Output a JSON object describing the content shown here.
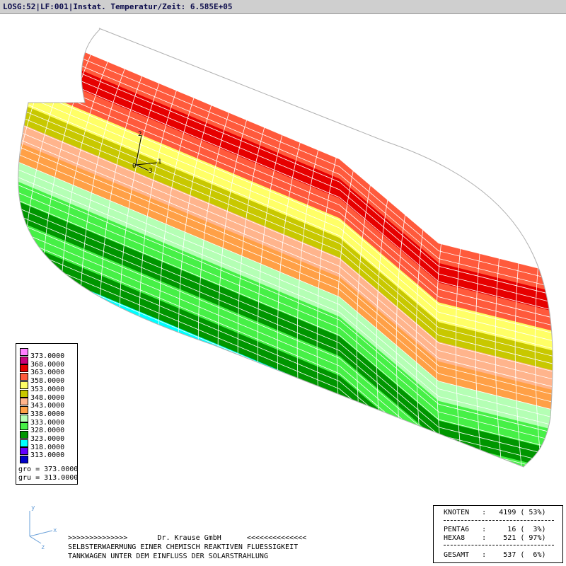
{
  "header": {
    "title": "LOSG:52|LF:001|Instat. Temperatur/Zeit: 6.585E+05"
  },
  "triad": {
    "axis1": "1",
    "axis2": "2",
    "axis3": "3",
    "origin": "0"
  },
  "view_axes": {
    "y": "y",
    "x": "x",
    "z": "z"
  },
  "legend": {
    "entries": [
      {
        "label": "373.0000",
        "color": "#ff80ff"
      },
      {
        "label": "368.0000",
        "color": "#c8007a"
      },
      {
        "label": "363.0000",
        "color": "#e60000"
      },
      {
        "label": "358.0000",
        "color": "#ff5a3c"
      },
      {
        "label": "353.0000",
        "color": "#ffff66"
      },
      {
        "label": "348.0000",
        "color": "#c8c800"
      },
      {
        "label": "343.0000",
        "color": "#ffb48c"
      },
      {
        "label": "338.0000",
        "color": "#ffa046"
      },
      {
        "label": "333.0000",
        "color": "#b4ffb4"
      },
      {
        "label": "328.0000",
        "color": "#46f046"
      },
      {
        "label": "323.0000",
        "color": "#009600"
      },
      {
        "label": "318.0000",
        "color": "#00ffff"
      },
      {
        "label": "313.0000",
        "color": "#6400ff"
      },
      {
        "label": "",
        "color": "#0000c8"
      }
    ],
    "gro": "gro = 373.0000",
    "gru": "gru = 313.0000"
  },
  "credits": {
    "line1": ">>>>>>>>>>>>>>       Dr. Krause GmbH      <<<<<<<<<<<<<<",
    "line2": "SELBSTERWAERMUNG EINER CHEMISCH REAKTIVEN FLUESSIGKEIT",
    "line3": "TANKWAGEN UNTER DEM EINFLUSS DER SOLARSTRAHLUNG"
  },
  "stats": {
    "knoten": "KNOTEN   :   4199 ( 53%)",
    "penta6": "PENTA6   :     16 (  3%)",
    "hexa8": "HEXA8    :    521 ( 97%)",
    "gesamt": "GESAMT   :    537 (  6%)"
  },
  "bands": [
    {
      "color": "#ff5a3c"
    },
    {
      "color": "#e60000"
    },
    {
      "color": "#ff5a3c"
    },
    {
      "color": "#ffff66"
    },
    {
      "color": "#c8c800"
    },
    {
      "color": "#ffb48c"
    },
    {
      "color": "#ffa046"
    },
    {
      "color": "#b4ffb4"
    },
    {
      "color": "#46f046"
    },
    {
      "color": "#009600"
    },
    {
      "color": "#46f046"
    },
    {
      "color": "#009600"
    },
    {
      "color": "#00ffff"
    },
    {
      "color": "#00ffff"
    }
  ]
}
